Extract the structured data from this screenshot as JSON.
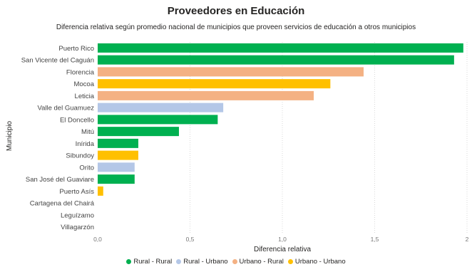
{
  "chart_data": {
    "type": "bar",
    "orientation": "horizontal",
    "title": "Proveedores en Educación",
    "subtitle": "Diferencia relativa según promedio nacional de municipios que proveen servicios de educación a otros municipios",
    "xlabel": "Diferencia relativa",
    "ylabel": "Municipio",
    "xlim": [
      0,
      2
    ],
    "xticks": [
      "0,0",
      "0,5",
      "1,0",
      "1,5",
      "2"
    ],
    "grid": true,
    "legend_position": "bottom",
    "categories": [
      "Puerto Rico",
      "San Vicente del Caguán",
      "Florencia",
      "Mocoa",
      "Leticia",
      "Valle del Guamuez",
      "El Doncello",
      "Mitú",
      "Inírida",
      "Sibundoy",
      "Orito",
      "San José del Guaviare",
      "Puerto Asís",
      "Cartagena del Chairá",
      "Leguízamo",
      "Villagarzón"
    ],
    "values": [
      1.98,
      1.93,
      1.44,
      1.26,
      1.17,
      0.68,
      0.65,
      0.44,
      0.22,
      0.22,
      0.2,
      0.2,
      0.03,
      0,
      0,
      0
    ],
    "groups": [
      "Rural - Rural",
      "Rural - Rural",
      "Urbano - Rural",
      "Urbano - Urbano",
      "Urbano - Rural",
      "Rural - Urbano",
      "Rural - Rural",
      "Rural - Rural",
      "Rural - Rural",
      "Urbano - Urbano",
      "Rural - Urbano",
      "Rural - Rural",
      "Urbano - Urbano",
      "Rural - Rural",
      "Rural - Rural",
      "Rural - Rural"
    ],
    "legend": [
      {
        "name": "Rural - Rural",
        "color": "#00b050"
      },
      {
        "name": "Rural - Urbano",
        "color": "#b4c7e7"
      },
      {
        "name": "Urbano - Rural",
        "color": "#f4b183"
      },
      {
        "name": "Urbano - Urbano",
        "color": "#ffc000"
      }
    ]
  }
}
